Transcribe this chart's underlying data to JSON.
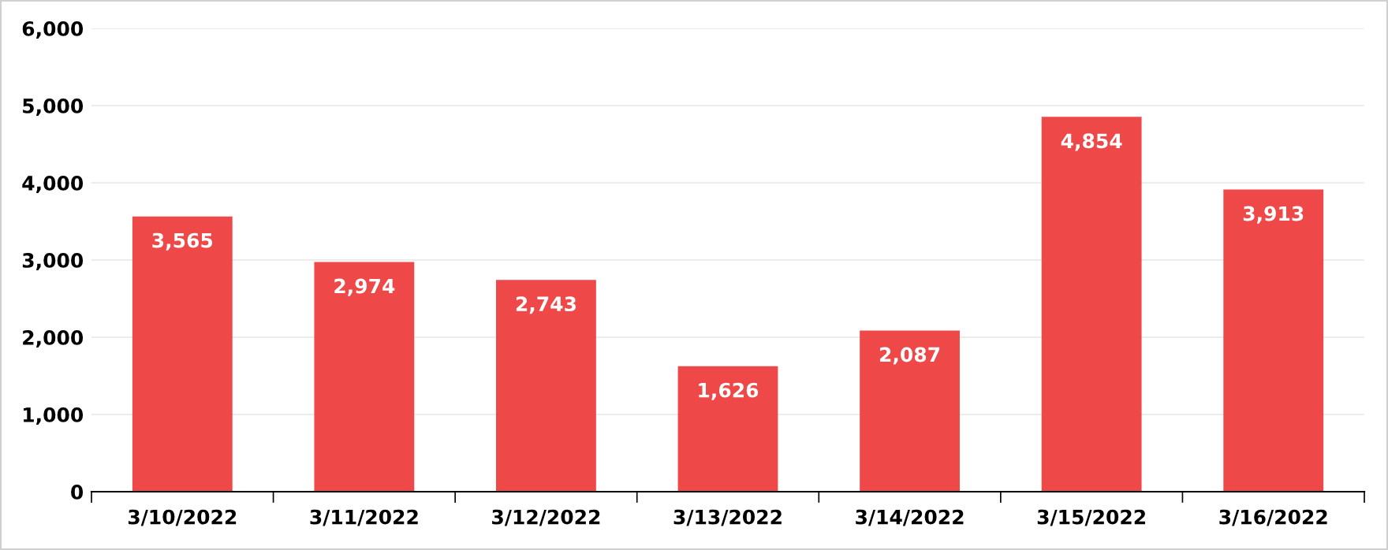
{
  "chart_data": {
    "type": "bar",
    "categories": [
      "3/10/2022",
      "3/11/2022",
      "3/12/2022",
      "3/13/2022",
      "3/14/2022",
      "3/15/2022",
      "3/16/2022"
    ],
    "values": [
      3565,
      2974,
      2743,
      1626,
      2087,
      4854,
      3913
    ],
    "value_labels": [
      "3,565",
      "2,974",
      "2,743",
      "1,626",
      "2,087",
      "4,854",
      "3,913"
    ],
    "color": "#ef4848",
    "ylim": [
      0,
      6000
    ],
    "yticks": [
      0,
      {
        "value": 1000,
        "label": "1,000"
      },
      {
        "value": 2000,
        "label": "2,000"
      },
      {
        "value": 3000,
        "label": "3,000"
      },
      {
        "value": 4000,
        "label": "4,000"
      },
      {
        "value": 5000,
        "label": "5,000"
      },
      {
        "value": 6000,
        "label": "6,000"
      }
    ],
    "grid": "y"
  }
}
